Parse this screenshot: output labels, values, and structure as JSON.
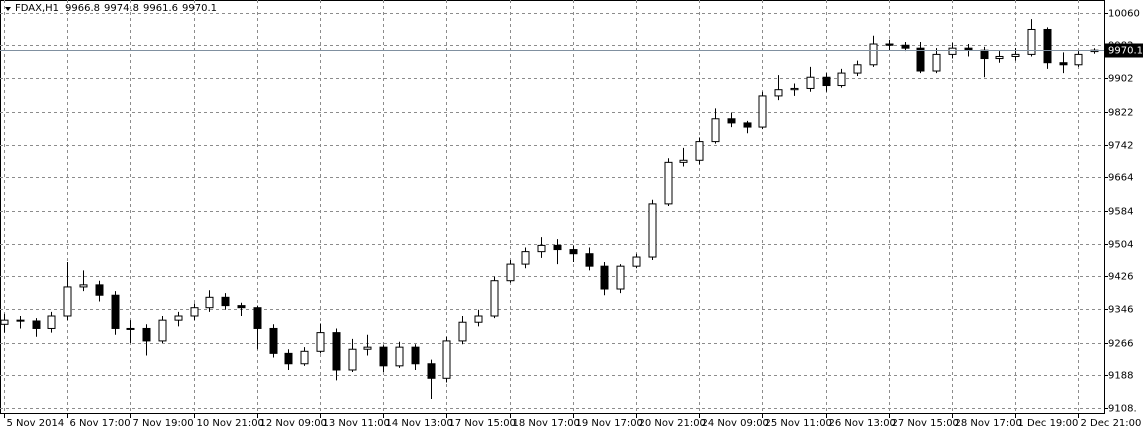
{
  "chart_data": {
    "type": "candlestick",
    "title": "FDAX,H1",
    "categories": [
      "5 Nov 2014",
      null,
      null,
      null,
      "6 Nov 17:00",
      null,
      null,
      null,
      "7 Nov 19:00",
      null,
      null,
      null,
      "10 Nov 21:00",
      null,
      null,
      null,
      "12 Nov 09:00",
      null,
      null,
      null,
      "13 Nov 11:00",
      null,
      null,
      null,
      "14 Nov 13:00",
      null,
      null,
      null,
      "17 Nov 15:00",
      null,
      null,
      null,
      "18 Nov 17:00",
      null,
      null,
      null,
      "19 Nov 17:00",
      null,
      null,
      null,
      "20 Nov 21:00",
      null,
      null,
      null,
      "24 Nov 09:00",
      null,
      null,
      null,
      "25 Nov 11:00",
      null,
      null,
      null,
      "26 Nov 13:00",
      null,
      null,
      null,
      "27 Nov 15:00",
      null,
      null,
      null,
      "28 Nov 17:00",
      null,
      null,
      null,
      "1 Dec 19:00",
      null,
      null,
      null,
      "2 Dec 21:00",
      null
    ],
    "open": [
      9310,
      9320,
      9318,
      9300,
      9330,
      9400,
      9405,
      9380,
      9300,
      9300,
      9270,
      9320,
      9330,
      9350,
      9375,
      9355,
      9350,
      9300,
      9240,
      9215,
      9245,
      9290,
      9200,
      9250,
      9255,
      9210,
      9255,
      9215,
      9180,
      9270,
      9315,
      9330,
      9415,
      9455,
      9485,
      9500,
      9490,
      9480,
      9450,
      9395,
      9450,
      9472,
      9600,
      9700,
      9705,
      9750,
      9805,
      9795,
      9785,
      9860,
      9875,
      9878,
      9905,
      9885,
      9915,
      9935,
      9985,
      9982,
      9975,
      9920,
      9960,
      9975,
      9970,
      9950,
      9955,
      9960,
      10020,
      9940,
      9935,
      9966.8
    ],
    "high": [
      9335,
      9330,
      9325,
      9340,
      9460,
      9440,
      9415,
      9390,
      9320,
      9310,
      9330,
      9340,
      9360,
      9392,
      9385,
      9362,
      9355,
      9310,
      9250,
      9255,
      9312,
      9300,
      9275,
      9285,
      9260,
      9268,
      9262,
      9225,
      9280,
      9330,
      9345,
      9425,
      9465,
      9495,
      9520,
      9515,
      9500,
      9495,
      9460,
      9455,
      9480,
      9610,
      9710,
      9735,
      9760,
      9830,
      9820,
      9800,
      9870,
      9910,
      9890,
      9930,
      9915,
      9925,
      9945,
      10005,
      9995,
      9990,
      9990,
      9975,
      9988,
      9985,
      9978,
      9968,
      9975,
      10045,
      10025,
      9965,
      9968,
      9974.8
    ],
    "low": [
      9290,
      9300,
      9280,
      9290,
      9320,
      9390,
      9365,
      9285,
      9265,
      9235,
      9265,
      9305,
      9320,
      9340,
      9345,
      9330,
      9250,
      9230,
      9200,
      9210,
      9240,
      9175,
      9195,
      9235,
      9195,
      9205,
      9200,
      9130,
      9170,
      9262,
      9305,
      9325,
      9410,
      9445,
      9470,
      9455,
      9460,
      9440,
      9380,
      9385,
      9445,
      9465,
      9595,
      9690,
      9695,
      9745,
      9785,
      9770,
      9780,
      9850,
      9860,
      9870,
      9870,
      9880,
      9908,
      9930,
      9970,
      9968,
      9915,
      9915,
      9950,
      9955,
      9905,
      9940,
      9945,
      9955,
      9925,
      9915,
      9930,
      9961.6
    ],
    "close": [
      9320,
      9318,
      9300,
      9330,
      9400,
      9405,
      9380,
      9300,
      9300,
      9270,
      9320,
      9330,
      9350,
      9375,
      9355,
      9350,
      9300,
      9240,
      9215,
      9245,
      9290,
      9200,
      9250,
      9255,
      9210,
      9255,
      9215,
      9180,
      9270,
      9315,
      9330,
      9415,
      9455,
      9485,
      9500,
      9490,
      9480,
      9450,
      9395,
      9450,
      9472,
      9600,
      9700,
      9705,
      9750,
      9805,
      9795,
      9785,
      9860,
      9875,
      9878,
      9905,
      9885,
      9915,
      9935,
      9985,
      9982,
      9975,
      9920,
      9960,
      9975,
      9970,
      9950,
      9955,
      9960,
      10020,
      9940,
      9935,
      9960,
      9970.1
    ],
    "up_color": "#ffffff",
    "down_color": "#000000",
    "wick_color": "#000000",
    "ylim": [
      9094,
      10091
    ],
    "yticks": [
      10060,
      9982,
      9902,
      9822,
      9742,
      9664,
      9584,
      9504,
      9426,
      9346,
      9266,
      9188,
      {
        "value": 9108,
        "label": "9108."
      }
    ],
    "grid": true,
    "last_price_line": true
  }
}
